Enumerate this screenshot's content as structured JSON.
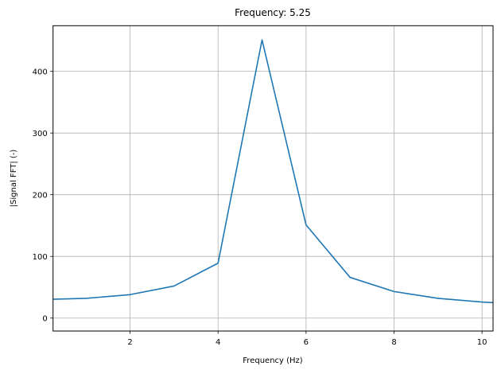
{
  "chart_data": {
    "type": "line",
    "title": "Frequency: 5.25",
    "xlabel": "Frequency (Hz)",
    "ylabel": "|Signal FFT| (-)",
    "xlim": [
      0.25,
      10.25
    ],
    "ylim": [
      -21,
      474
    ],
    "xticks": [
      2,
      4,
      6,
      8,
      10
    ],
    "yticks": [
      0,
      100,
      200,
      300,
      400
    ],
    "grid": true,
    "legend": null,
    "series": [
      {
        "name": "|Signal FFT|",
        "color": "#1f77b4",
        "x": [
          0,
          1,
          2,
          3,
          4,
          5,
          6,
          7,
          8,
          9,
          10,
          11
        ],
        "y": [
          30,
          32,
          38,
          52,
          89,
          451,
          151,
          66,
          43,
          32,
          26,
          22
        ]
      }
    ]
  },
  "colors": {
    "line": "#1f77b4",
    "grid": "#b0b0b0",
    "axes": "#000000",
    "background": "#ffffff"
  }
}
